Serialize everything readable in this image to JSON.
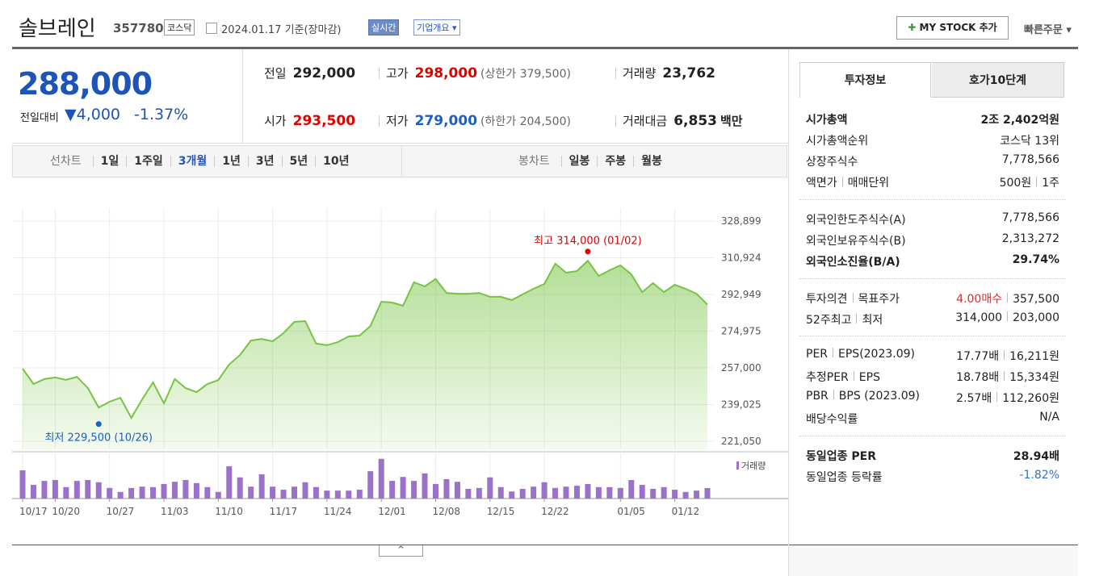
{
  "header": {
    "name": "솔브레인",
    "code": "357780",
    "market": "코스닥",
    "date": "2024.01.17 기준(장마감)",
    "realtime": "실시간",
    "company_info": "기업개요",
    "my_stock": "MY STOCK 추가",
    "quick_order": "빠른주문"
  },
  "price": {
    "current": "288,000",
    "change_label": "전일대비",
    "change": "4,000",
    "change_pct": "-1.37%"
  },
  "summary": [
    {
      "label": "전일",
      "value": "292,000"
    },
    {
      "label": "고가",
      "value": "298,000",
      "extra": "(상한가 379,500)",
      "color": "#e00000"
    },
    {
      "label": "거래량",
      "value": "23,762"
    },
    {
      "label": "시가",
      "value": "293,500",
      "color": "#e00000"
    },
    {
      "label": "저가",
      "value": "279,000",
      "extra": "(하한가 204,500)",
      "color": "#1a5fc4"
    },
    {
      "label": "거래대금",
      "value": "6,853",
      "unit": "백만"
    }
  ],
  "chart_tabs": {
    "line_label": "선차트",
    "line_periods": [
      "1일",
      "1주일",
      "3개월",
      "1년",
      "3년",
      "5년",
      "10년"
    ],
    "candle_label": "봉차트",
    "candle_periods": [
      "일봉",
      "주봉",
      "월봉"
    ]
  },
  "chart_data": [
    {
      "type": "line",
      "color": "#76c442",
      "grid": true,
      "categories": [
        "10/17",
        null,
        null,
        "10/20",
        null,
        null,
        null,
        null,
        "10/27",
        null,
        null,
        null,
        null,
        "11/03",
        null,
        null,
        null,
        null,
        "11/10",
        null,
        null,
        null,
        null,
        "11/17",
        null,
        null,
        null,
        null,
        "11/24",
        null,
        null,
        null,
        null,
        "12/01",
        null,
        null,
        null,
        null,
        "12/08",
        null,
        null,
        null,
        null,
        "12/15",
        null,
        null,
        null,
        null,
        "12/22",
        null,
        null,
        null,
        null,
        null,
        null,
        "01/05",
        null,
        null,
        null,
        null,
        "01/12",
        null,
        null,
        null
      ],
      "values": [
        256600,
        249100,
        251500,
        252300,
        251100,
        252600,
        247100,
        237600,
        240400,
        242400,
        232500,
        241600,
        249900,
        239600,
        251500,
        247100,
        245100,
        249100,
        251000,
        258600,
        263300,
        270400,
        271200,
        270000,
        274000,
        279500,
        279900,
        268900,
        268100,
        269600,
        272400,
        272800,
        277500,
        289400,
        289000,
        287400,
        298900,
        296900,
        300500,
        293700,
        293300,
        293300,
        293700,
        291800,
        291800,
        290200,
        293000,
        295700,
        298100,
        308000,
        303600,
        304400,
        309500,
        302000,
        304800,
        307200,
        302800,
        294100,
        298500,
        294100,
        297700,
        295700,
        293300,
        288000
      ],
      "ylim": [
        221050,
        328899
      ],
      "yticks": [
        {
          "value": 328899,
          "label": "328,899"
        },
        {
          "value": 310924,
          "label": "310,924"
        },
        {
          "value": 292949,
          "label": "292,949"
        },
        {
          "value": 274975,
          "label": "274,975"
        },
        {
          "value": 257000,
          "label": "257,000"
        },
        {
          "value": 239025,
          "label": "239,025"
        },
        {
          "value": 221050,
          "label": "221,050"
        }
      ],
      "annotations": [
        {
          "text": "최고 314,000 (01/02)",
          "value": 314000,
          "x": 52,
          "color": "#e00000"
        },
        {
          "text": "최저 229,500 (10/26)",
          "value": 229500,
          "x": 7,
          "color": "#1a5fc4"
        }
      ]
    },
    {
      "type": "bar",
      "ylim": [
        0,
        95000
      ],
      "series": [
        {
          "name": "거래량",
          "color": "#9b72c9",
          "values": [
            64000,
            31000,
            40000,
            42000,
            26000,
            40000,
            42000,
            37000,
            24000,
            15000,
            24000,
            27000,
            26000,
            33000,
            38000,
            42000,
            35000,
            26000,
            15000,
            73000,
            48000,
            27000,
            55000,
            27000,
            20000,
            27000,
            37000,
            26000,
            18000,
            18000,
            18000,
            20000,
            62000,
            90000,
            40000,
            49000,
            40000,
            57000,
            33000,
            44000,
            38000,
            22000,
            24000,
            48000,
            26000,
            16000,
            22000,
            27000,
            37000,
            24000,
            27000,
            29000,
            33000,
            26000,
            26000,
            24000,
            42000,
            31000,
            22000,
            26000,
            20000,
            15000,
            18000,
            23762
          ]
        }
      ]
    }
  ],
  "sidebar": {
    "tabs": [
      "투자정보",
      "호가10단계"
    ],
    "groups": [
      [
        {
          "labels": [
            "시가총액"
          ],
          "values": [
            "2조 2,402억원"
          ],
          "bold": true
        },
        {
          "labels": [
            "시가총액순위"
          ],
          "values": [
            "코스닥 13위"
          ]
        },
        {
          "labels": [
            "상장주식수"
          ],
          "values": [
            "7,778,566"
          ]
        },
        {
          "labels": [
            "액면가",
            "매매단위"
          ],
          "values": [
            "500원",
            "1주"
          ]
        }
      ],
      [
        {
          "labels": [
            "외국인한도주식수(A)"
          ],
          "values": [
            "7,778,566"
          ]
        },
        {
          "labels": [
            "외국인보유주식수(B)"
          ],
          "values": [
            "2,313,272"
          ]
        },
        {
          "labels": [
            "외국인소진율(B/A)"
          ],
          "values": [
            "29.74%"
          ],
          "bold": true
        }
      ],
      [
        {
          "labels": [
            "투자의견",
            "목표주가"
          ],
          "values": [
            "4.00매수",
            "357,500"
          ],
          "color": "#d62c2c"
        },
        {
          "labels": [
            "52주최고",
            "최저"
          ],
          "values": [
            "314,000",
            "203,000"
          ]
        }
      ],
      [
        {
          "labels": [
            "PER",
            "EPS(2023.09)"
          ],
          "values": [
            "17.77배",
            "16,211원"
          ]
        },
        {
          "labels": [
            "추정PER",
            "EPS"
          ],
          "values": [
            "18.78배",
            "15,334원"
          ]
        },
        {
          "labels": [
            "PBR",
            "BPS (2023.09)"
          ],
          "values": [
            "2.57배",
            "112,260원"
          ]
        },
        {
          "labels": [
            "배당수익률"
          ],
          "values": [
            "N/A"
          ]
        }
      ],
      [
        {
          "labels": [
            "동일업종 PER"
          ],
          "values": [
            "28.94배"
          ],
          "bold": true
        },
        {
          "labels": [
            "동일업종 등락률"
          ],
          "values": [
            "-1.82%"
          ],
          "color": "#2f6fd0"
        }
      ]
    ]
  }
}
